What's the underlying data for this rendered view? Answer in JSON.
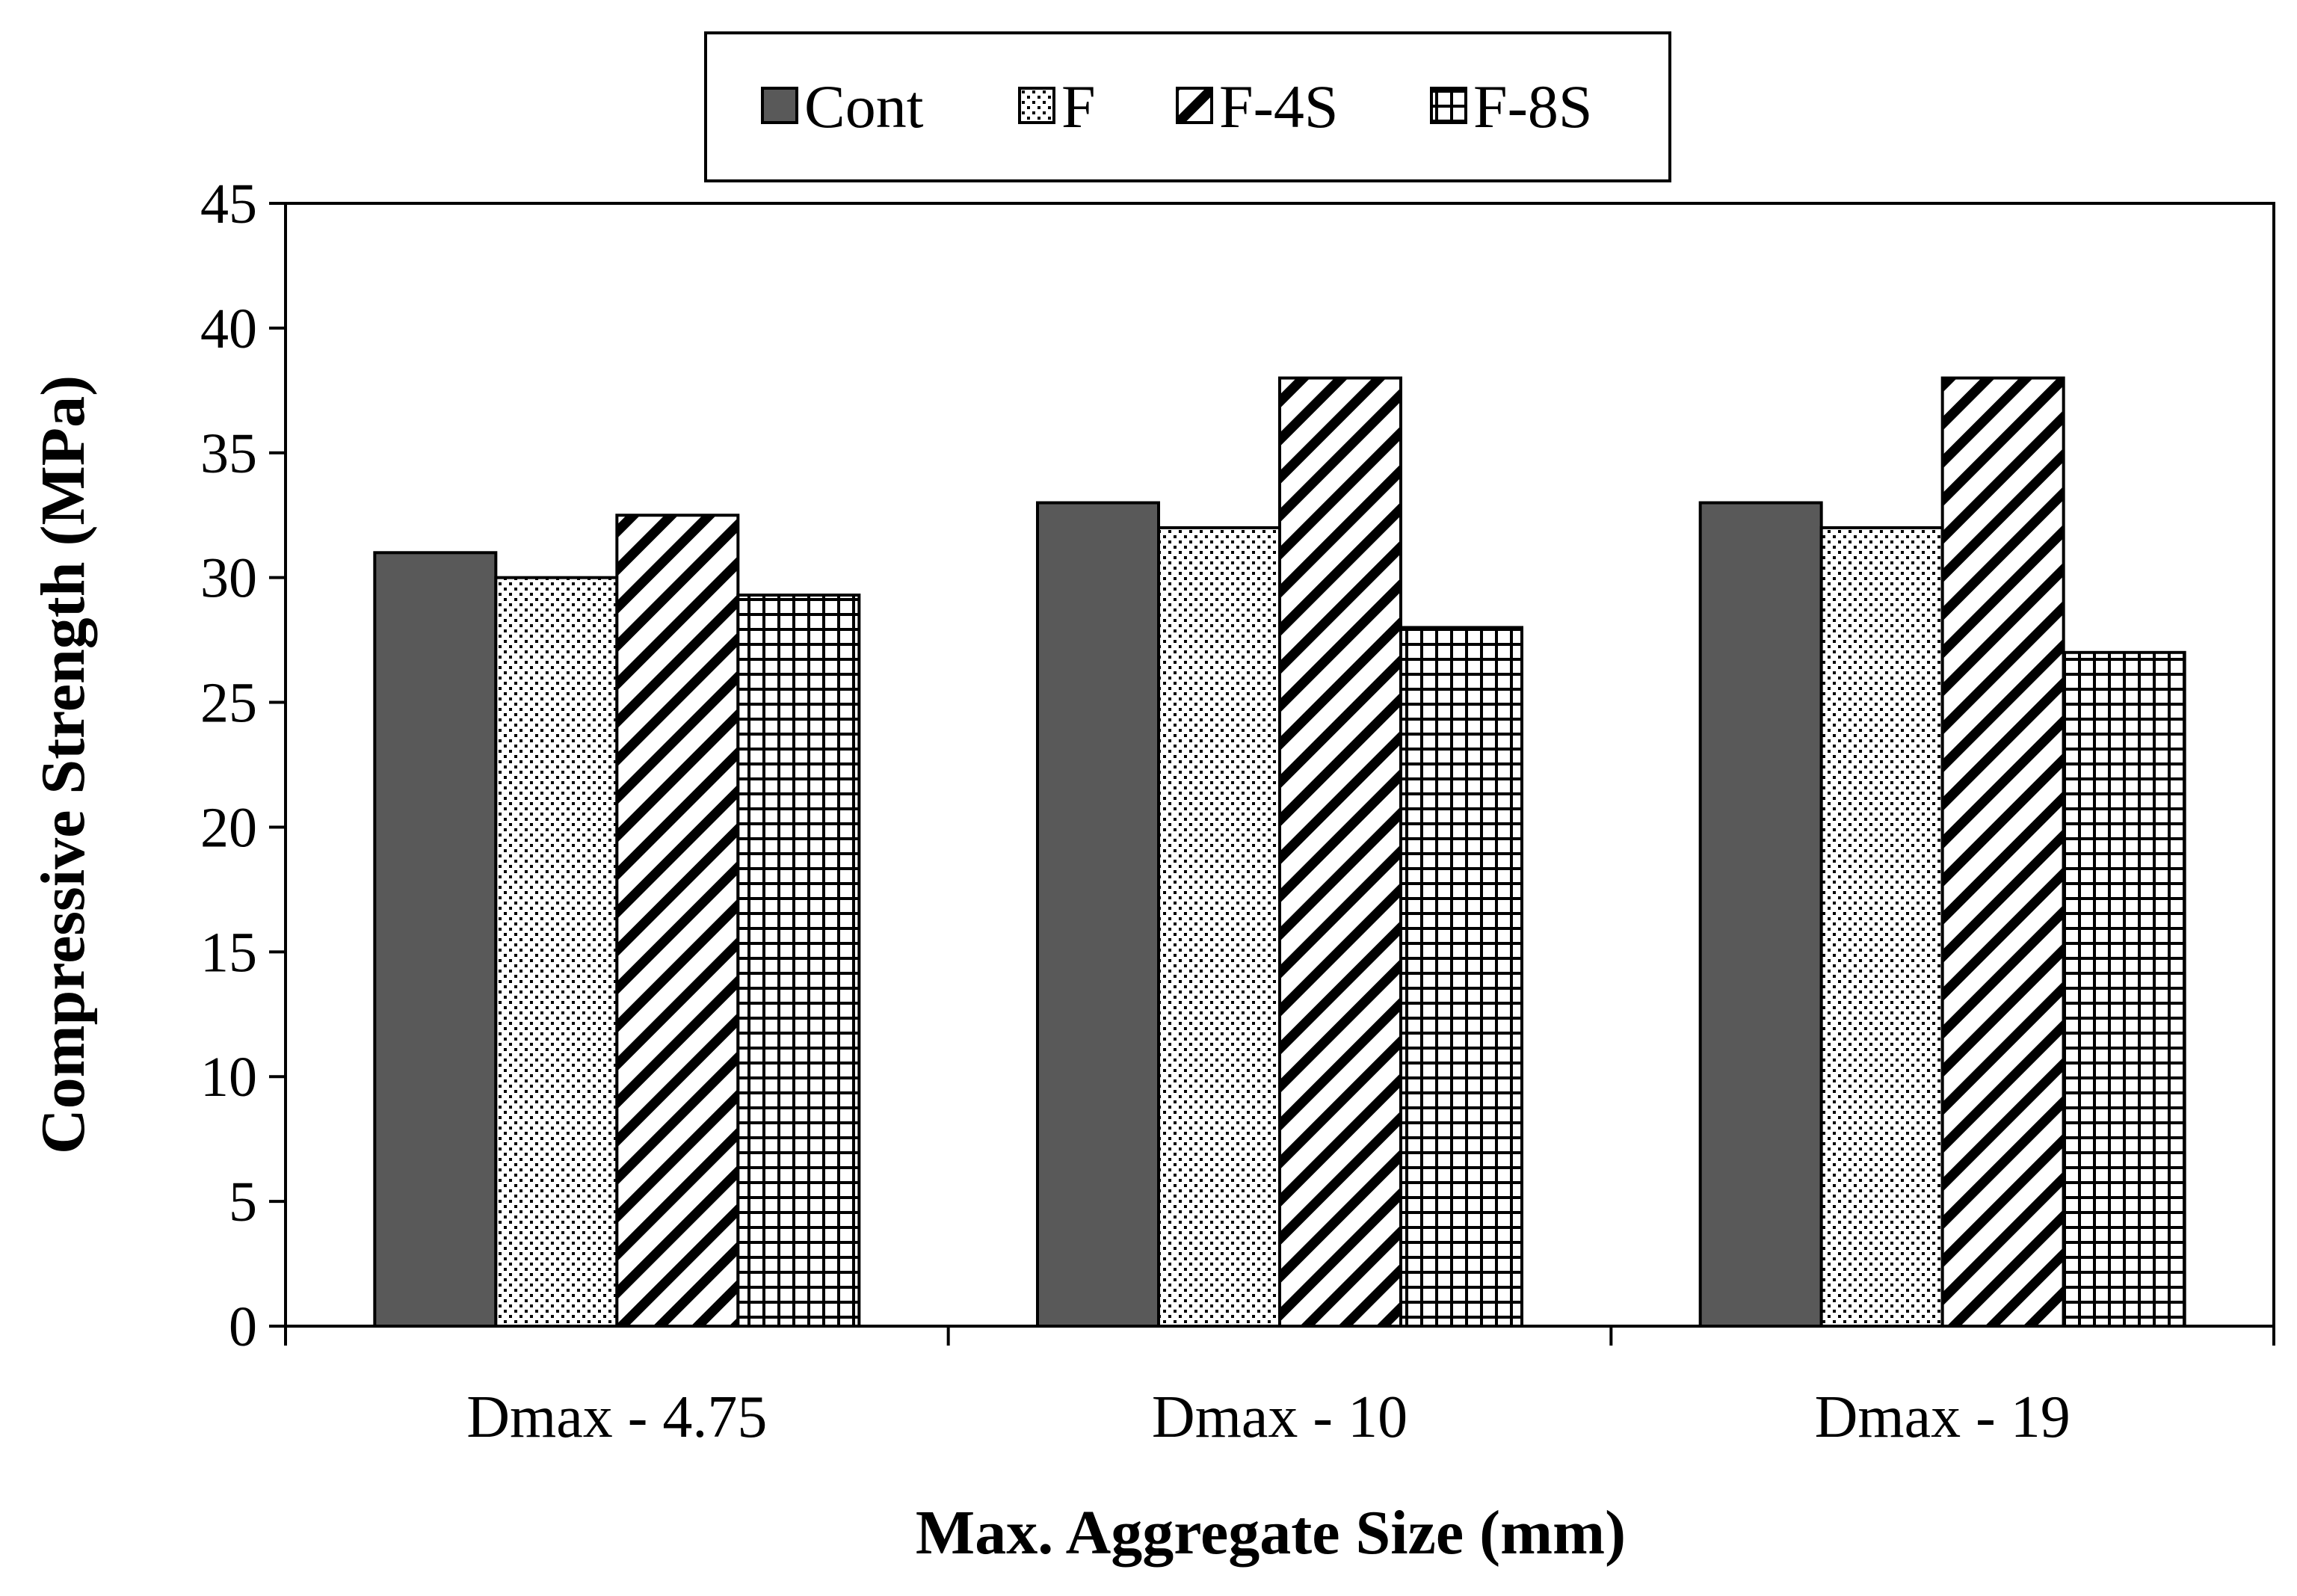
{
  "chart_data": {
    "type": "bar",
    "title": "",
    "xlabel": "Max. Aggregate Size (mm)",
    "ylabel": "Compressive Strength (MPa)",
    "ylim": [
      0,
      45
    ],
    "yticks": [
      0,
      5,
      10,
      15,
      20,
      25,
      30,
      35,
      40,
      45
    ],
    "categories": [
      "Dmax - 4.75",
      "Dmax - 10",
      "Dmax - 19"
    ],
    "series": [
      {
        "name": "Cont",
        "pattern": "solid",
        "color": "#595959",
        "values": [
          31,
          33,
          33
        ]
      },
      {
        "name": "F",
        "pattern": "dots",
        "color": "#ffffff",
        "values": [
          30,
          32,
          32
        ]
      },
      {
        "name": "F-4S",
        "pattern": "diagonal",
        "color": "#ffffff",
        "values": [
          32.5,
          38,
          38
        ]
      },
      {
        "name": "F-8S",
        "pattern": "grid",
        "color": "#ffffff",
        "values": [
          29.3,
          28,
          27
        ]
      }
    ],
    "legend_position": "top-center",
    "grid": false
  }
}
